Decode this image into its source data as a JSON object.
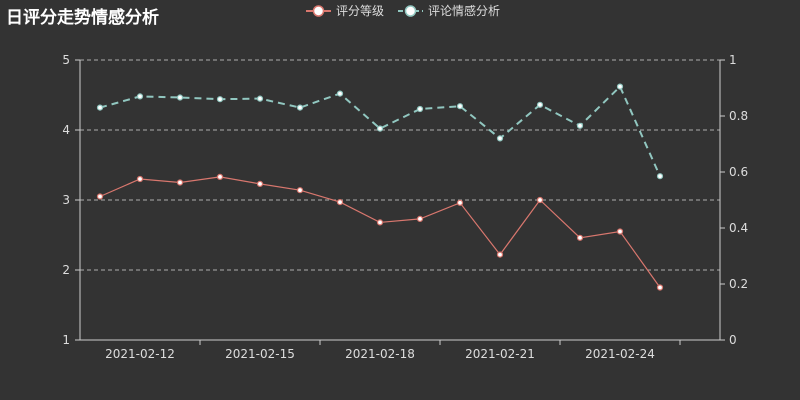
{
  "chart_data": {
    "type": "line",
    "title": "日评分走势情感分析",
    "x": [
      "2021-02-11",
      "2021-02-12",
      "2021-02-13",
      "2021-02-14",
      "2021-02-15",
      "2021-02-16",
      "2021-02-17",
      "2021-02-18",
      "2021-02-19",
      "2021-02-20",
      "2021-02-21",
      "2021-02-22",
      "2021-02-23",
      "2021-02-24",
      "2021-02-25",
      "2021-02-26"
    ],
    "x_tick_labels": [
      "2021-02-12",
      "2021-02-15",
      "2021-02-18",
      "2021-02-21",
      "2021-02-24"
    ],
    "series": [
      {
        "name": "评分等级",
        "axis": "left",
        "color": "#d9776e",
        "line_style": "solid",
        "values": [
          3.05,
          3.3,
          3.25,
          3.33,
          3.23,
          3.14,
          2.97,
          2.68,
          2.73,
          2.96,
          2.22,
          3.0,
          2.46,
          2.55,
          1.75,
          null
        ]
      },
      {
        "name": "评论情感分析",
        "axis": "right",
        "color": "#91c7c0",
        "line_style": "dashed",
        "values": [
          0.83,
          0.87,
          0.866,
          0.86,
          0.862,
          0.83,
          0.88,
          0.755,
          0.825,
          0.835,
          0.72,
          0.84,
          0.765,
          0.905,
          0.585,
          null
        ]
      }
    ],
    "y_left": {
      "min": 1,
      "max": 5,
      "ticks": [
        1,
        2,
        3,
        4,
        5
      ]
    },
    "y_right": {
      "min": 0,
      "max": 1,
      "ticks": [
        0,
        0.2,
        0.4,
        0.6,
        0.8,
        1
      ]
    },
    "grid": true,
    "legend": "top-center"
  }
}
